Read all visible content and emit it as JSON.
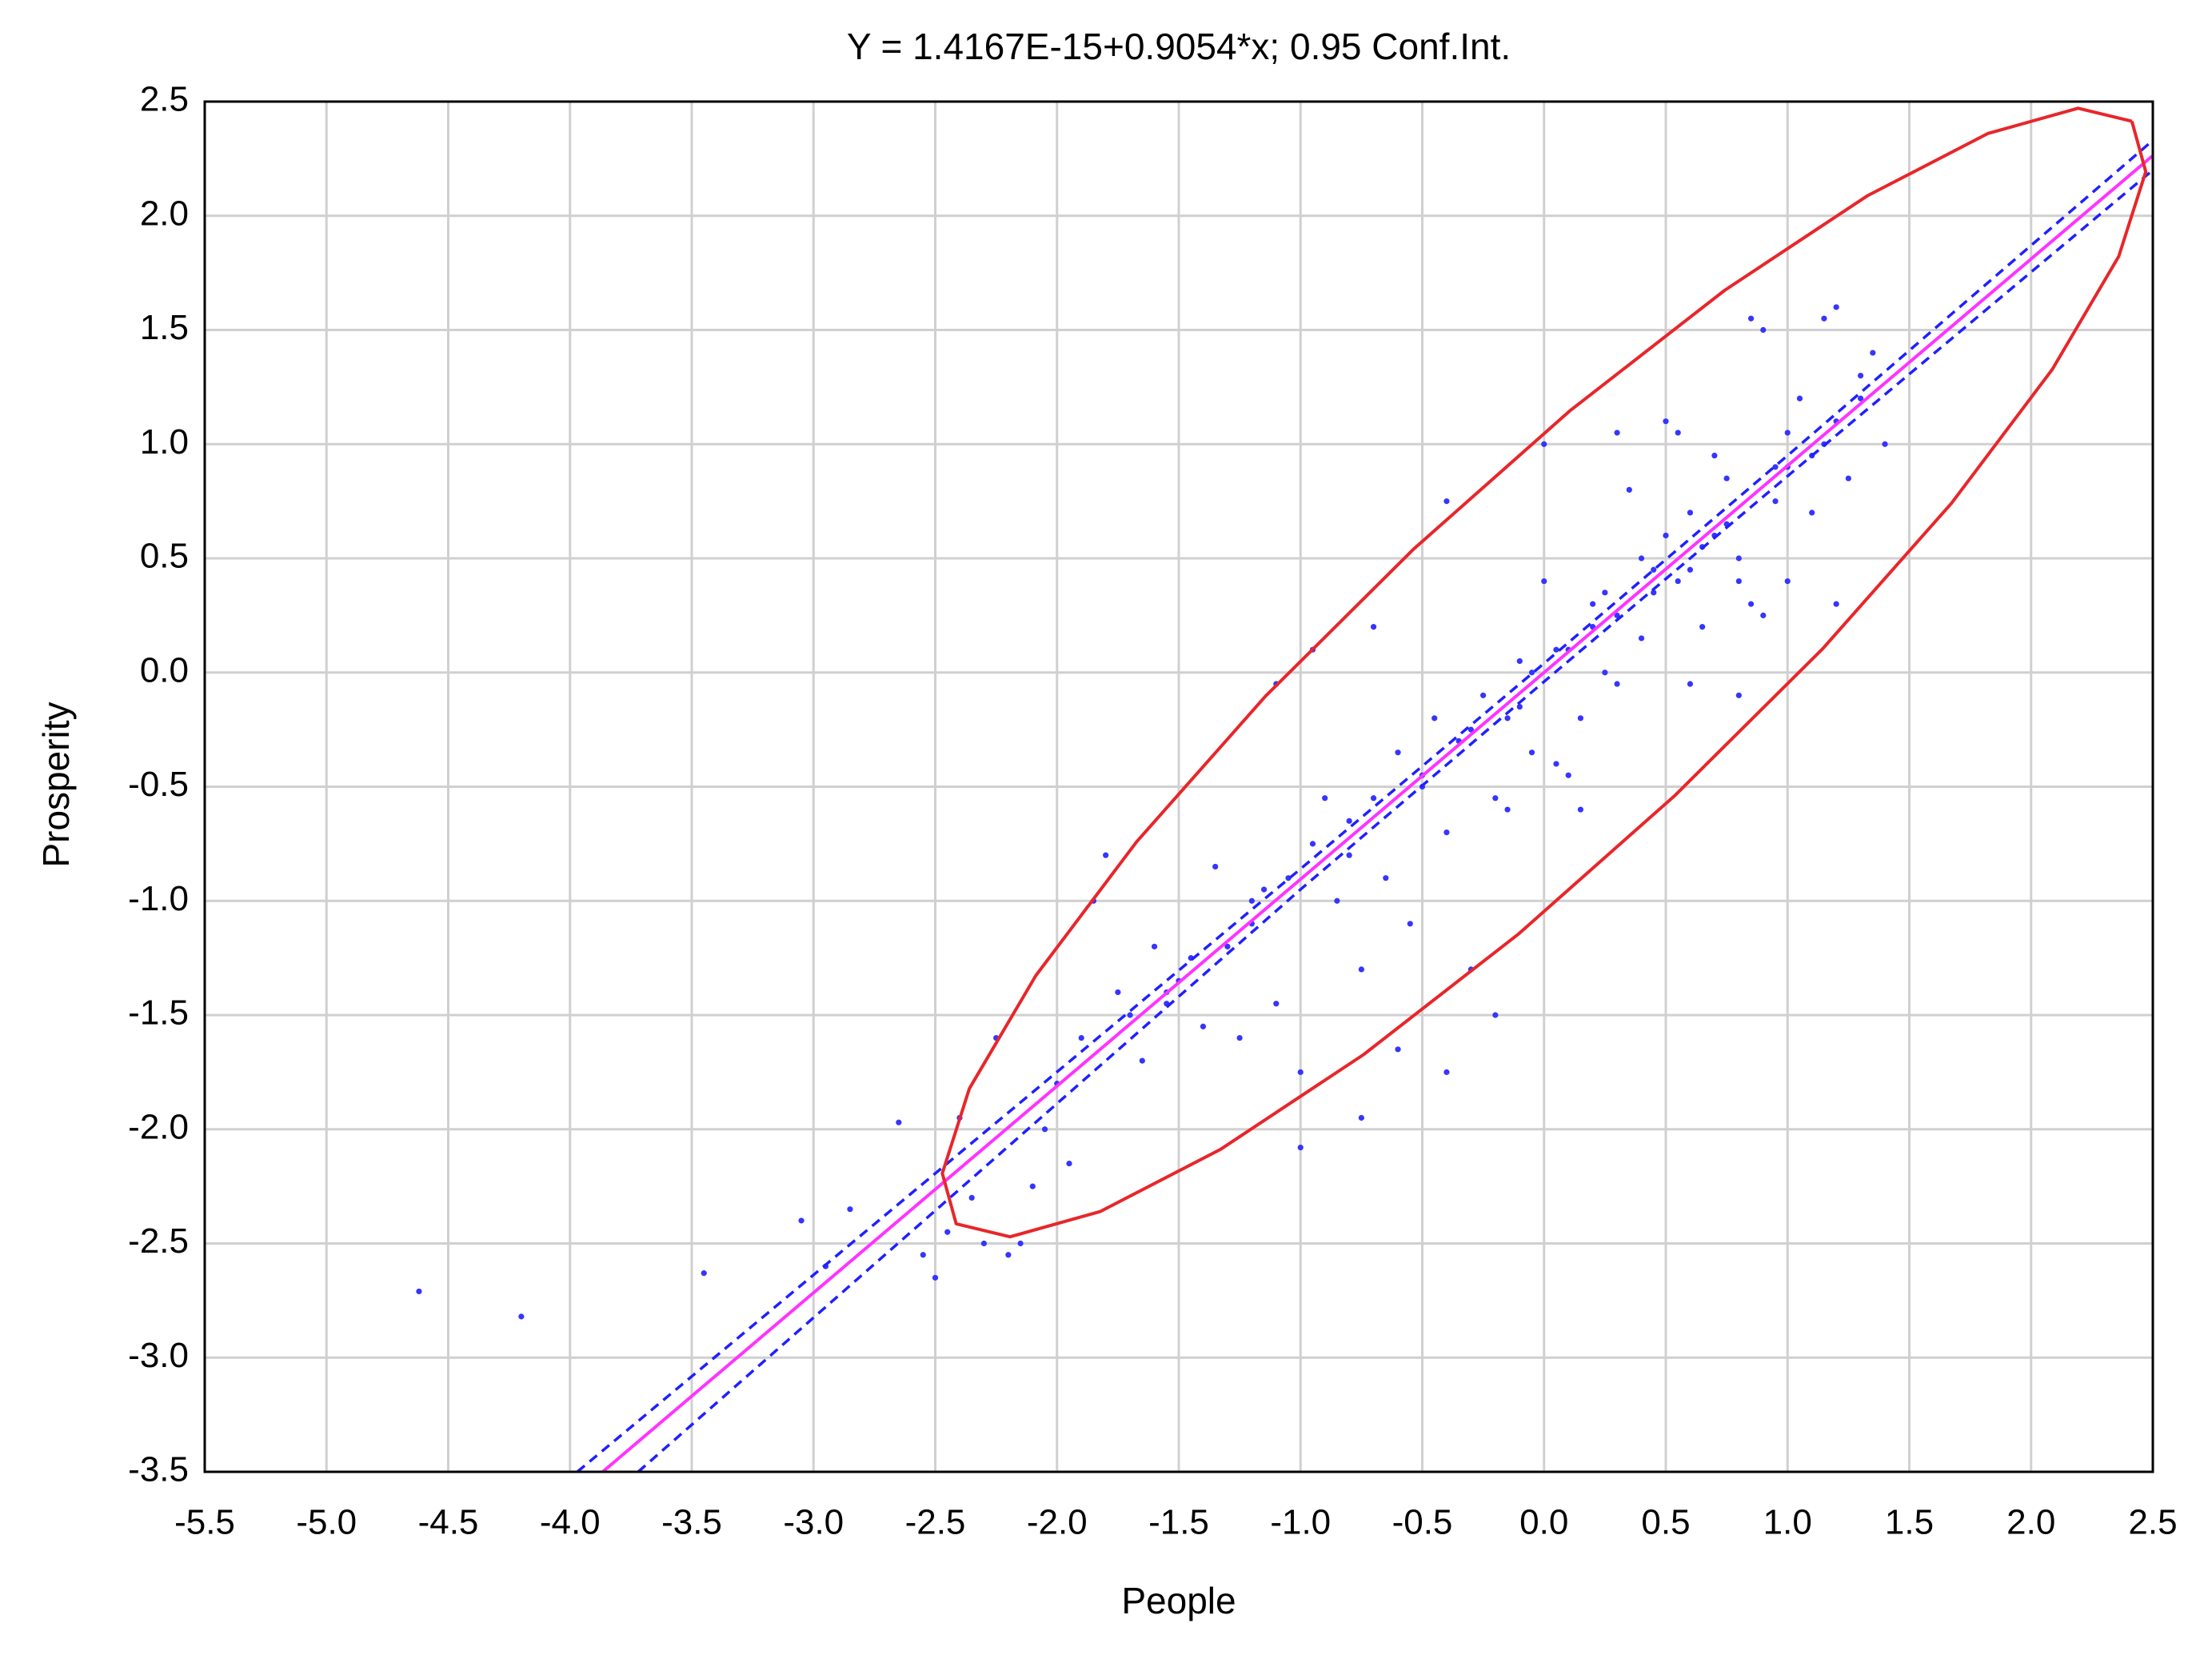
{
  "chart_data": {
    "type": "scatter",
    "title": "Y = 1.4167E-15+0.9054*x; 0.95 Conf.Int.",
    "x_label": "People",
    "y_label": "Prosperity",
    "grid": true,
    "xlim": [
      -5.5,
      2.5
    ],
    "ylim": [
      -3.5,
      2.5
    ],
    "xticks": [
      -5.5,
      {
        "value": -5,
        "label": "-5.0"
      },
      -4.5,
      {
        "value": -4,
        "label": "-4.0"
      },
      -3.5,
      {
        "value": -3,
        "label": "-3.0"
      },
      -2.5,
      {
        "value": -2,
        "label": "-2.0"
      },
      -1.5,
      {
        "value": -1,
        "label": "-1.0"
      },
      -0.5,
      {
        "value": 0,
        "label": "0.0"
      },
      0.5,
      {
        "value": 1,
        "label": "1.0"
      },
      1.5,
      {
        "value": 2,
        "label": "2.0"
      },
      2.5
    ],
    "yticks": [
      2.5,
      {
        "value": 2,
        "label": "2.0"
      },
      1.5,
      {
        "value": 1,
        "label": "1.0"
      },
      0.5,
      {
        "value": 0,
        "label": "0.0"
      },
      -0.5,
      {
        "value": -1,
        "label": "-1.0"
      },
      -1.5,
      {
        "value": -2,
        "label": "-2.0"
      },
      -2.5,
      {
        "value": -3,
        "label": "-3.0"
      },
      -3.5
    ],
    "series": [
      {
        "style": "points",
        "color": "#3535ff",
        "x": [
          -4.62,
          -4.2,
          -3.45,
          -3.05,
          -2.95,
          -2.85,
          -2.65,
          -2.55,
          -2.5,
          -2.45,
          -2.4,
          -2.35,
          -2.3,
          -2.25,
          -2.2,
          -2.15,
          -2.1,
          -2.05,
          -2.0,
          -1.95,
          -1.9,
          -1.85,
          -1.8,
          -1.75,
          -1.7,
          -1.65,
          -1.6,
          -1.55,
          -1.5,
          -1.45,
          -1.4,
          -1.35,
          -1.3,
          -1.25,
          -1.2,
          -1.15,
          -1.1,
          -1.05,
          -1.0,
          -0.95,
          -0.9,
          -0.85,
          -0.8,
          -0.75,
          -0.7,
          -0.65,
          -0.6,
          -0.55,
          -0.5,
          -0.45,
          -0.4,
          -0.35,
          -0.3,
          -0.25,
          -0.2,
          -0.15,
          -0.1,
          -0.05,
          0,
          0.05,
          0.1,
          0.15,
          0.2,
          0.25,
          0.3,
          0.35,
          0.4,
          0.45,
          0.5,
          0.55,
          0.6,
          0.65,
          0.7,
          0.75,
          0.8,
          0.85,
          0.9,
          0.95,
          1.0,
          1.05,
          1.1,
          1.15,
          1.2,
          1.25,
          1.3,
          1.35,
          1.4,
          -0.95,
          -1.1,
          -0.7,
          -0.4,
          0,
          0.3,
          0.5,
          0.85,
          1.2,
          -0.6,
          -0.4,
          -0.75,
          -1.0,
          -0.2,
          0.15,
          0.1,
          0.6,
          0.7,
          0.8,
          1.0,
          0.9,
          1.1,
          0.4,
          0.2,
          -0.1,
          -0.3,
          -0.5,
          -0.8,
          -1.2,
          -1.55,
          1.3,
          1.0,
          0.65,
          0.45,
          0.25,
          0.05,
          -0.05,
          0.55,
          0.75,
          0.95,
          1.15,
          -0.15,
          0.3,
          0.6,
          0.8,
          1.2
        ],
        "values": [
          -2.71,
          -2.82,
          -2.63,
          -2.4,
          -2.6,
          -2.35,
          -1.97,
          -2.55,
          -2.65,
          -2.45,
          -1.95,
          -2.3,
          -2.5,
          -1.6,
          -2.55,
          -2.5,
          -2.25,
          -2.0,
          -1.8,
          -2.15,
          -1.6,
          -1.0,
          -0.8,
          -1.4,
          -1.5,
          -1.7,
          -1.2,
          -1.45,
          -1.35,
          -1.25,
          -1.55,
          -0.85,
          -1.2,
          -1.6,
          -1.1,
          -0.95,
          -1.45,
          -0.9,
          -1.75,
          -0.75,
          -0.55,
          -1.0,
          -0.65,
          -1.3,
          -0.55,
          -0.9,
          -0.35,
          -1.1,
          -0.45,
          -0.2,
          -0.7,
          -0.3,
          -1.3,
          -0.1,
          -0.55,
          -0.2,
          0.05,
          -0.35,
          0.4,
          -0.4,
          0.1,
          -0.6,
          0.3,
          0,
          0.25,
          0.8,
          0.15,
          0.35,
          0.6,
          1.05,
          0.45,
          0.2,
          0.6,
          0.85,
          0.4,
          0.3,
          1.5,
          0.75,
          0.9,
          1.2,
          0.95,
          1.55,
          1.1,
          0.85,
          1.3,
          1.4,
          1.0,
          0.1,
          -0.05,
          0.2,
          0.75,
          1.0,
          1.05,
          1.1,
          1.55,
          1.6,
          -1.65,
          -1.75,
          -1.95,
          -2.08,
          -1.5,
          -0.2,
          -0.45,
          0.7,
          0.95,
          0.5,
          0.4,
          0.25,
          0.7,
          0.5,
          0.2,
          -0.15,
          -0.25,
          -0.5,
          -0.8,
          -1.0,
          -1.4,
          1.2,
          1.05,
          0.55,
          0.45,
          0.35,
          0.1,
          0,
          0.4,
          0.65,
          0.9,
          1.0,
          -0.6,
          -0.05,
          -0.05,
          -0.1,
          0.3
        ]
      },
      {
        "style": "dashed",
        "color": "#2020ff",
        "x": [
          -3.97,
          -1,
          0,
          1,
          2.5
        ],
        "values": [
          -3.5,
          -0.86,
          0.04,
          0.95,
          2.33
        ]
      },
      {
        "style": "dashed",
        "color": "#2020ff",
        "x": [
          -3.72,
          -1,
          0,
          1,
          2.5
        ],
        "values": [
          -3.5,
          -0.95,
          -0.04,
          0.86,
          2.2
        ]
      },
      {
        "style": "line",
        "color": "#ff33ff",
        "x": [
          -3.866,
          2.5
        ],
        "values": [
          -3.5,
          2.2635
        ]
      },
      {
        "style": "line",
        "color": "#e8262a",
        "x": [
          2.414,
          2.193,
          1.822,
          1.327,
          0.741,
          0.105,
          -0.538,
          -1.145,
          -1.673,
          -2.087,
          -2.36,
          -2.471,
          -2.414,
          -2.193,
          -1.822,
          -1.327,
          -0.741,
          -0.105,
          0.538,
          1.145,
          1.673,
          2.087,
          2.36,
          2.471,
          2.414
        ],
        "values": [
          2.414,
          2.471,
          2.36,
          2.087,
          1.673,
          1.145,
          0.538,
          -0.105,
          -0.741,
          -1.327,
          -1.822,
          -2.193,
          -2.414,
          -2.471,
          -2.36,
          -2.087,
          -1.673,
          -1.145,
          -0.538,
          0.105,
          0.741,
          1.327,
          1.822,
          2.193,
          2.414
        ]
      }
    ]
  }
}
